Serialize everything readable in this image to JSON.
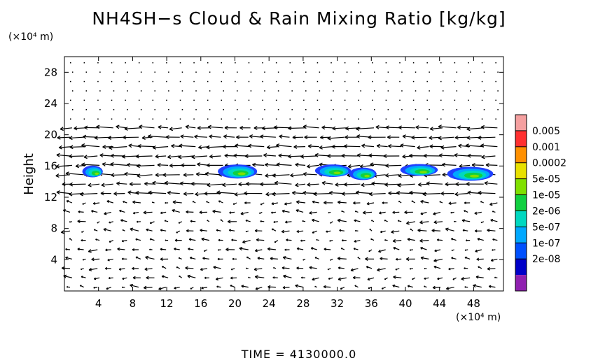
{
  "chart_data": {
    "type": "heatmap",
    "title": "NH4SH−s Cloud & Rain Mixing Ratio [kg/kg]",
    "ylabel": "Height",
    "x_unit": "(×10⁴ m)",
    "y_unit": "(×10⁴ m)",
    "xlim": [
      0,
      51.5
    ],
    "ylim": [
      0,
      30
    ],
    "x_ticks": [
      4,
      8,
      12,
      16,
      20,
      24,
      28,
      32,
      36,
      40,
      44,
      48
    ],
    "y_ticks": [
      4,
      8,
      12,
      16,
      20,
      24,
      28
    ],
    "time_label": "TIME  =  4130000.0",
    "colorbar": {
      "labels": [
        "0.005",
        "0.001",
        "0.0002",
        "5e-05",
        "1e-05",
        "2e-06",
        "5e-07",
        "1e-07",
        "2e-08"
      ],
      "colors": [
        "#f5a0a0",
        "#ff3030",
        "#ff9000",
        "#e8e000",
        "#80e000",
        "#10d040",
        "#00d8c0",
        "#00a8ff",
        "#0050ff",
        "#0000c8",
        "#9020b0"
      ]
    },
    "cloud_patches": [
      {
        "x": 3.3,
        "y": 15.3,
        "w": 2.4,
        "h": 1.5
      },
      {
        "x": 20.3,
        "y": 15.3,
        "w": 4.6,
        "h": 1.8
      },
      {
        "x": 31.5,
        "y": 15.4,
        "w": 4.2,
        "h": 1.6
      },
      {
        "x": 35.0,
        "y": 15.0,
        "w": 3.2,
        "h": 1.6
      },
      {
        "x": 41.6,
        "y": 15.5,
        "w": 4.4,
        "h": 1.5
      },
      {
        "x": 47.6,
        "y": 15.0,
        "w": 5.4,
        "h": 1.8
      }
    ]
  }
}
